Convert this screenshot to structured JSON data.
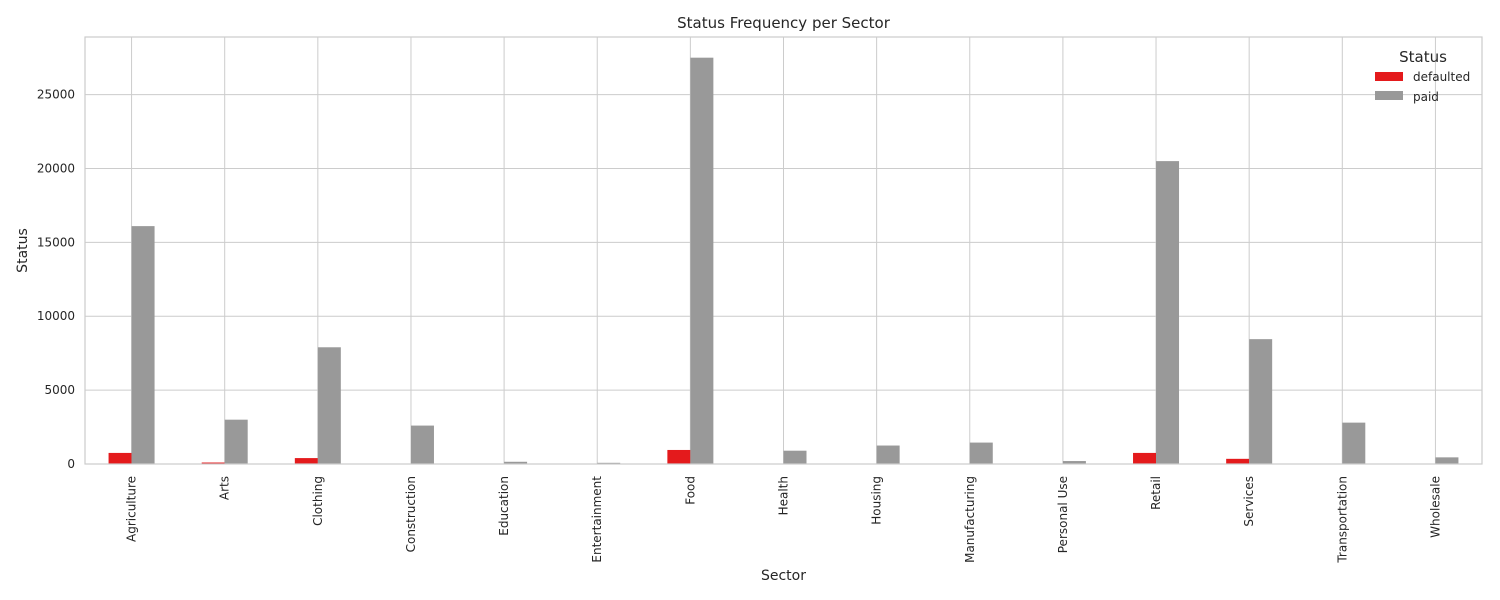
{
  "chart_data": {
    "type": "bar",
    "title": "Status Frequency per Sector",
    "xlabel": "Sector",
    "ylabel": "Status",
    "ylim": [
      0,
      28900
    ],
    "yticks": [
      0,
      5000,
      10000,
      15000,
      20000,
      25000
    ],
    "categories": [
      "Agriculture",
      "Arts",
      "Clothing",
      "Construction",
      "Education",
      "Entertainment",
      "Food",
      "Health",
      "Housing",
      "Manufacturing",
      "Personal Use",
      "Retail",
      "Services",
      "Transportation",
      "Wholesale"
    ],
    "series": [
      {
        "name": "defaulted",
        "color": "#e41a1c",
        "values": [
          750,
          100,
          400,
          20,
          15,
          10,
          950,
          30,
          20,
          20,
          10,
          750,
          350,
          25,
          10
        ]
      },
      {
        "name": "paid",
        "color": "#999999",
        "values": [
          16100,
          3000,
          7900,
          2600,
          150,
          80,
          27500,
          900,
          1250,
          1450,
          200,
          20500,
          8450,
          2800,
          450
        ]
      }
    ],
    "legend": {
      "title": "Status",
      "position": "top-right"
    },
    "grid": true
  }
}
